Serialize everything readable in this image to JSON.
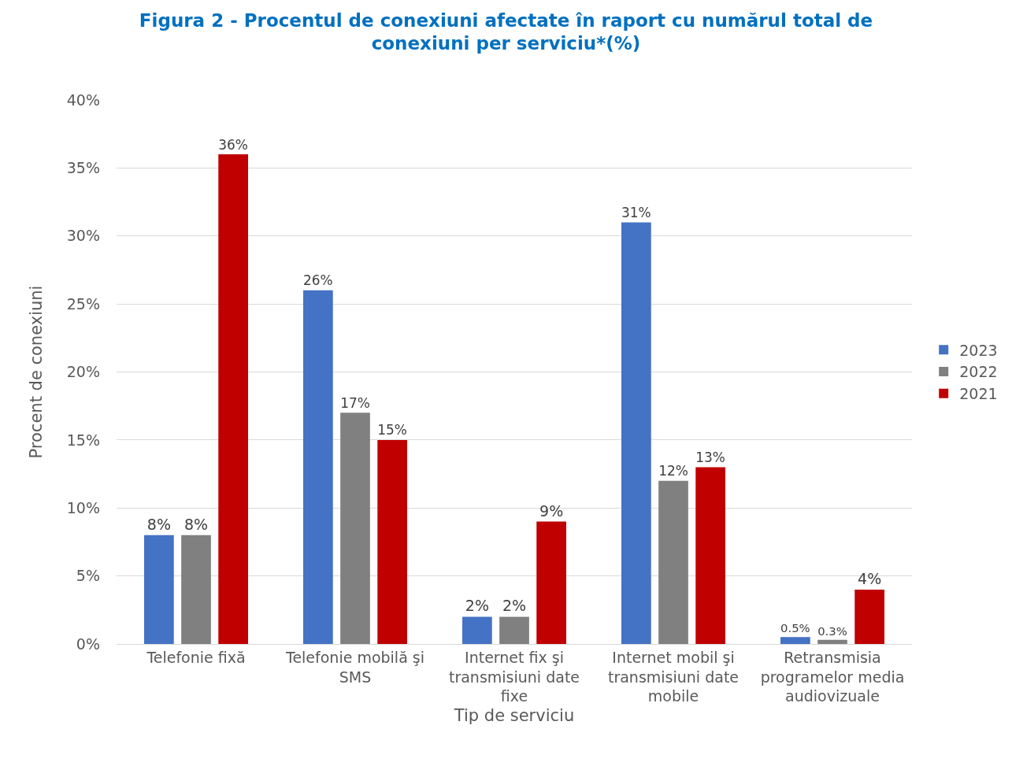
{
  "chart_data": {
    "type": "bar",
    "title": "Figura 2 - Procentul de conexiuni afectate în raport cu numărul total de conexiuni per serviciu*(%)",
    "xlabel": "Tip de serviciu",
    "ylabel": "Procent de conexiuni",
    "categories": [
      "Telefonie fixă",
      "Telefonie mobilă şi SMS",
      "Internet fix şi transmisiuni date fixe",
      "Internet mobil şi transmisiuni date mobile",
      "Retransmisia programelor media audiovizuale"
    ],
    "series": [
      {
        "name": "2023",
        "color": "#4472c4",
        "values": [
          8,
          26,
          2,
          31,
          0.5
        ],
        "value_labels": [
          "8%",
          "26%",
          "2%",
          "31%",
          "0.5%"
        ]
      },
      {
        "name": "2022",
        "color": "#808080",
        "values": [
          8,
          17,
          2,
          12,
          0.3
        ],
        "value_labels": [
          "8%",
          "17%",
          "2%",
          "12%",
          "0.3%"
        ]
      },
      {
        "name": "2021",
        "color": "#c00000",
        "values": [
          36,
          15,
          9,
          13,
          4
        ],
        "value_labels": [
          "36%",
          "15%",
          "9%",
          "13%",
          "4%"
        ]
      }
    ],
    "ylim": [
      0,
      40
    ],
    "yticks": [
      {
        "value": 0,
        "label": "0%"
      },
      {
        "value": 5,
        "label": "5%"
      },
      {
        "value": 10,
        "label": "10%"
      },
      {
        "value": 15,
        "label": "15%"
      },
      {
        "value": 20,
        "label": "20%"
      },
      {
        "value": 25,
        "label": "25%"
      },
      {
        "value": 30,
        "label": "30%"
      },
      {
        "value": 35,
        "label": "35%"
      },
      {
        "value": 40,
        "label": "40%"
      }
    ],
    "grid": "y",
    "legend": "right"
  }
}
